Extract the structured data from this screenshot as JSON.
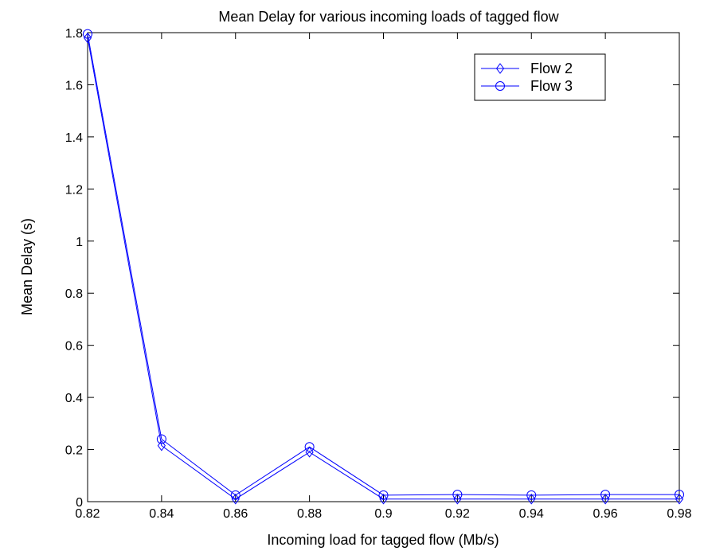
{
  "chart_data": {
    "type": "line",
    "title": "Mean Delay for various incoming loads of tagged flow",
    "xlabel": "Incoming load for tagged flow (Mb/s)",
    "ylabel": "Mean Delay (s)",
    "xlim": [
      0.82,
      0.98
    ],
    "ylim": [
      0,
      1.8
    ],
    "x_ticks": [
      "0.82",
      "0.84",
      "0.86",
      "0.88",
      "0.9",
      "0.92",
      "0.94",
      "0.96",
      "0.98"
    ],
    "y_ticks": [
      "0",
      "0.2",
      "0.4",
      "0.6",
      "0.8",
      "1",
      "1.2",
      "1.4",
      "1.6",
      "1.8"
    ],
    "grid": false,
    "legend_position": "top-right",
    "x": [
      0.82,
      0.84,
      0.86,
      0.88,
      0.9,
      0.92,
      0.94,
      0.96,
      0.98
    ],
    "series": [
      {
        "name": "Flow 2",
        "marker": "diamond",
        "color": "#0000ff",
        "values": [
          1.78,
          0.215,
          0.01,
          0.19,
          0.01,
          0.01,
          0.01,
          0.01,
          0.01
        ]
      },
      {
        "name": "Flow 3",
        "marker": "circle",
        "color": "#0000ff",
        "values": [
          1.795,
          0.24,
          0.025,
          0.21,
          0.025,
          0.027,
          0.025,
          0.027,
          0.027
        ]
      }
    ]
  }
}
